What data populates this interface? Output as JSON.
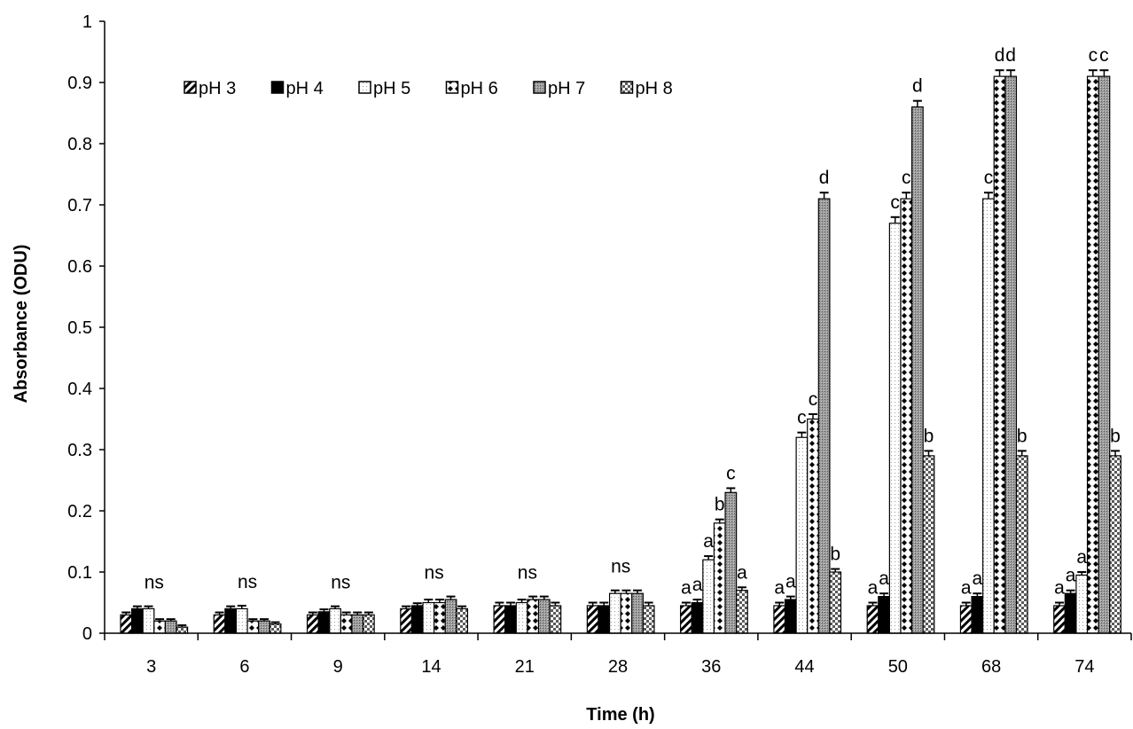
{
  "chart_data": {
    "type": "bar",
    "title": "",
    "xlabel": "Time (h)",
    "ylabel": "Absorbance (ODU)",
    "ylim": [
      0,
      1
    ],
    "yticks": [
      "0",
      "0.1",
      "0.2",
      "0.3",
      "0.4",
      "0.5",
      "0.6",
      "0.7",
      "0.8",
      "0.9",
      "1"
    ],
    "categories": [
      "3",
      "6",
      "9",
      "14",
      "21",
      "28",
      "36",
      "44",
      "50",
      "68",
      "74"
    ],
    "grid": false,
    "legend_position": "top-left",
    "series": [
      {
        "name": "pH 3",
        "pattern": "diagonal-hatch",
        "values": [
          0.03,
          0.03,
          0.03,
          0.04,
          0.045,
          0.045,
          0.045,
          0.045,
          0.045,
          0.045,
          0.045
        ],
        "errors": [
          0.004,
          0.004,
          0.004,
          0.004,
          0.005,
          0.005,
          0.005,
          0.005,
          0.005,
          0.005,
          0.005
        ]
      },
      {
        "name": "pH 4",
        "pattern": "solid-black",
        "values": [
          0.04,
          0.04,
          0.035,
          0.045,
          0.045,
          0.045,
          0.05,
          0.055,
          0.06,
          0.06,
          0.065
        ],
        "errors": [
          0.004,
          0.004,
          0.004,
          0.004,
          0.005,
          0.005,
          0.005,
          0.005,
          0.005,
          0.005,
          0.005
        ]
      },
      {
        "name": "pH 5",
        "pattern": "fine-dots",
        "values": [
          0.04,
          0.04,
          0.04,
          0.05,
          0.05,
          0.065,
          0.12,
          0.32,
          0.67,
          0.71,
          0.095
        ],
        "errors": [
          0.004,
          0.005,
          0.004,
          0.005,
          0.005,
          0.005,
          0.006,
          0.008,
          0.01,
          0.01,
          0.005
        ]
      },
      {
        "name": "pH 6",
        "pattern": "diamond-dots",
        "values": [
          0.02,
          0.02,
          0.03,
          0.05,
          0.055,
          0.065,
          0.18,
          0.35,
          0.71,
          0.91,
          0.91
        ],
        "errors": [
          0.003,
          0.003,
          0.004,
          0.005,
          0.005,
          0.005,
          0.006,
          0.008,
          0.01,
          0.01,
          0.01
        ]
      },
      {
        "name": "pH 7",
        "pattern": "dense-gray",
        "values": [
          0.02,
          0.02,
          0.03,
          0.055,
          0.055,
          0.065,
          0.23,
          0.71,
          0.86,
          0.91,
          0.91
        ],
        "errors": [
          0.003,
          0.003,
          0.004,
          0.005,
          0.005,
          0.005,
          0.007,
          0.01,
          0.01,
          0.01,
          0.01
        ]
      },
      {
        "name": "pH 8",
        "pattern": "checker",
        "values": [
          0.01,
          0.015,
          0.03,
          0.04,
          0.045,
          0.045,
          0.07,
          0.1,
          0.29,
          0.29,
          0.29
        ],
        "errors": [
          0.003,
          0.003,
          0.004,
          0.004,
          0.005,
          0.005,
          0.005,
          0.005,
          0.008,
          0.008,
          0.008
        ]
      }
    ],
    "annotations": [
      {
        "category": "3",
        "text": "ns"
      },
      {
        "category": "6",
        "text": "ns"
      },
      {
        "category": "9",
        "text": "ns"
      },
      {
        "category": "14",
        "text": "ns"
      },
      {
        "category": "21",
        "text": "ns"
      },
      {
        "category": "28",
        "text": "ns"
      },
      {
        "category": "36",
        "series": "pH 3",
        "text": "a"
      },
      {
        "category": "36",
        "series": "pH 4",
        "text": "a"
      },
      {
        "category": "36",
        "series": "pH 5",
        "text": "a"
      },
      {
        "category": "36",
        "series": "pH 6",
        "text": "b"
      },
      {
        "category": "36",
        "series": "pH 7",
        "text": "c"
      },
      {
        "category": "36",
        "series": "pH 8",
        "text": "a"
      },
      {
        "category": "44",
        "series": "pH 3",
        "text": "a"
      },
      {
        "category": "44",
        "series": "pH 4",
        "text": "a"
      },
      {
        "category": "44",
        "series": "pH 5",
        "text": "c"
      },
      {
        "category": "44",
        "series": "pH 6",
        "text": "c"
      },
      {
        "category": "44",
        "series": "pH 7",
        "text": "d"
      },
      {
        "category": "44",
        "series": "pH 8",
        "text": "b"
      },
      {
        "category": "50",
        "series": "pH 3",
        "text": "a"
      },
      {
        "category": "50",
        "series": "pH 4",
        "text": "a"
      },
      {
        "category": "50",
        "series": "pH 5",
        "text": "c"
      },
      {
        "category": "50",
        "series": "pH 6",
        "text": "c"
      },
      {
        "category": "50",
        "series": "pH 7",
        "text": "d"
      },
      {
        "category": "50",
        "series": "pH 8",
        "text": "b"
      },
      {
        "category": "68",
        "series": "pH 3",
        "text": "a"
      },
      {
        "category": "68",
        "series": "pH 4",
        "text": "a"
      },
      {
        "category": "68",
        "series": "pH 5",
        "text": "c"
      },
      {
        "category": "68",
        "series": "pH 6",
        "text": "d"
      },
      {
        "category": "68",
        "series": "pH 7",
        "text": "d"
      },
      {
        "category": "68",
        "series": "pH 8",
        "text": "b"
      },
      {
        "category": "74",
        "series": "pH 3",
        "text": "a"
      },
      {
        "category": "74",
        "series": "pH 4",
        "text": "a"
      },
      {
        "category": "74",
        "series": "pH 5",
        "text": "a"
      },
      {
        "category": "74",
        "series": "pH 6",
        "text": "c"
      },
      {
        "category": "74",
        "series": "pH 7",
        "text": "c"
      },
      {
        "category": "74",
        "series": "pH 8",
        "text": "b"
      }
    ]
  }
}
